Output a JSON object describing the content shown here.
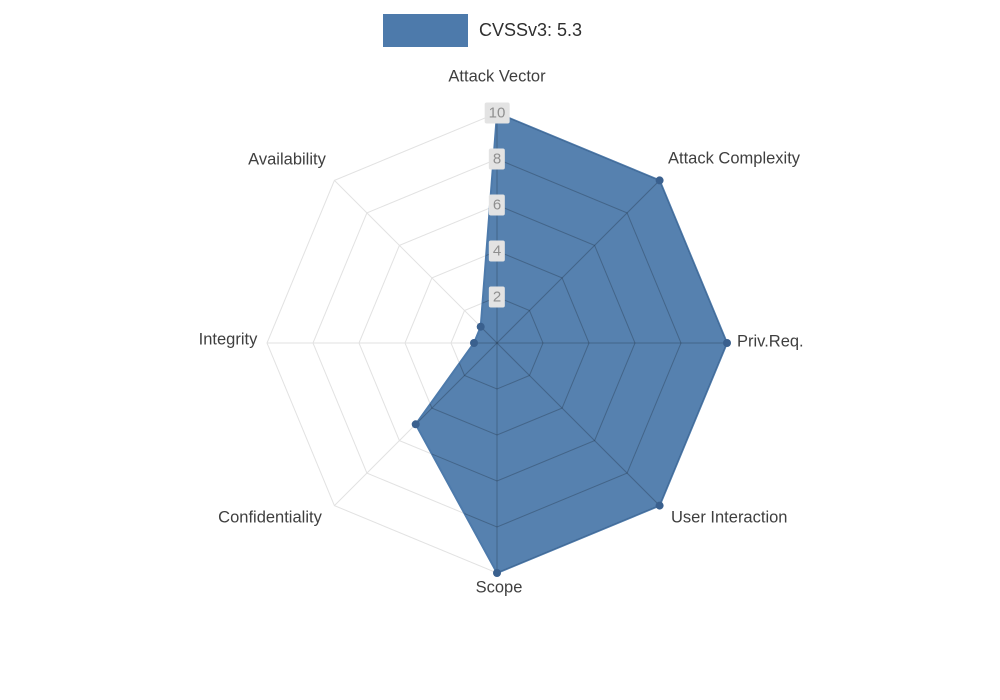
{
  "legend": {
    "label": "CVSSv3: 5.3",
    "swatch_color": "#4d7aab"
  },
  "chart_data": {
    "type": "radar",
    "series_name": "CVSSv3: 5.3",
    "categories": [
      "Attack Vector",
      "Attack Complexity",
      "Priv.Req.",
      "User Interaction",
      "Scope",
      "Confidentiality",
      "Integrity",
      "Availability"
    ],
    "values": [
      10,
      10,
      10,
      10,
      10,
      5,
      1,
      1
    ],
    "rlim": [
      0,
      10
    ],
    "ticks": [
      2,
      4,
      6,
      8,
      10
    ],
    "grid": true,
    "legend_position": "top",
    "fill_color": "#4d7aab",
    "line_color": "#4d7aab",
    "point_color": "#3a608e",
    "grid_color": "#e2e2e2",
    "tick_label_color": "#8f8f8f",
    "axis_label_color": "#3f3f3f"
  }
}
